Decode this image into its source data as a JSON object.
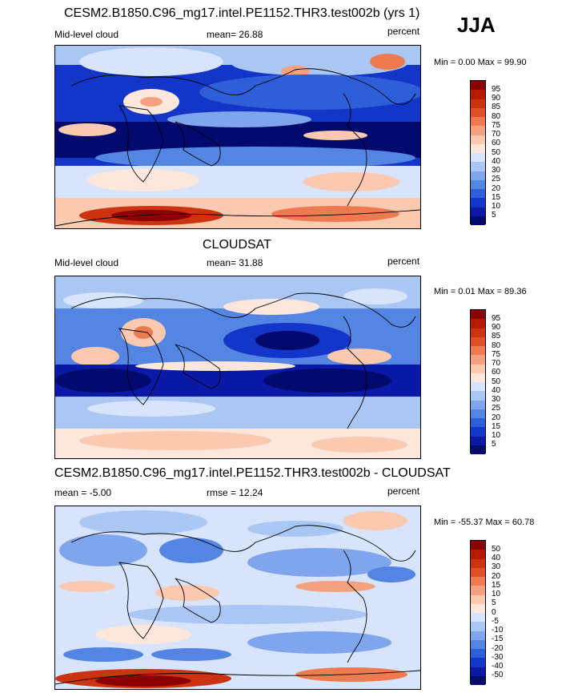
{
  "season": "JJA",
  "panels": [
    {
      "title": "CESM2.B1850.C96_mg17.intel.PE1152.THR3.test002b (yrs 1)",
      "left_label": "Mid-level cloud",
      "center_label": "mean=  26.88",
      "right_label": "percent",
      "minmax": "Min =   0.00 Max =  99.90",
      "colorbar_ticks": [
        "95",
        "90",
        "85",
        "80",
        "75",
        "70",
        "60",
        "50",
        "40",
        "30",
        "25",
        "20",
        "15",
        "10",
        "5"
      ],
      "colorbar_colors": [
        "#8b0000",
        "#b31a00",
        "#cc3311",
        "#e0502a",
        "#ee7a50",
        "#f5a07e",
        "#fbc8b0",
        "#fde7dc",
        "#d8e4fb",
        "#aac6f3",
        "#7fa6ec",
        "#5585e3",
        "#2e5fd8",
        "#1436c8",
        "#0a1aa6",
        "#020a6e"
      ]
    },
    {
      "title": "CLOUDSAT",
      "left_label": "Mid-level cloud",
      "center_label": "mean=  31.88",
      "right_label": "percent",
      "minmax": "Min =   0.01 Max =  89.36",
      "colorbar_ticks": [
        "95",
        "90",
        "85",
        "80",
        "75",
        "70",
        "60",
        "50",
        "40",
        "30",
        "25",
        "20",
        "15",
        "10",
        "5"
      ],
      "colorbar_colors": [
        "#8b0000",
        "#b31a00",
        "#cc3311",
        "#e0502a",
        "#ee7a50",
        "#f5a07e",
        "#fbc8b0",
        "#fde7dc",
        "#d8e4fb",
        "#aac6f3",
        "#7fa6ec",
        "#5585e3",
        "#2e5fd8",
        "#1436c8",
        "#0a1aa6",
        "#020a6e"
      ]
    },
    {
      "title": "CESM2.B1850.C96_mg17.intel.PE1152.THR3.test002b - CLOUDSAT",
      "left_label": "mean = -5.00",
      "center_label": "rmse =  12.24",
      "right_label": "percent",
      "minmax": "Min = -55.37 Max =  60.78",
      "colorbar_ticks": [
        "50",
        "40",
        "30",
        "20",
        "15",
        "10",
        "5",
        "0",
        "-5",
        "-10",
        "-15",
        "-20",
        "-30",
        "-40",
        "-50"
      ],
      "colorbar_colors": [
        "#8b0000",
        "#b31a00",
        "#cc3311",
        "#e0502a",
        "#ee7a50",
        "#f5a07e",
        "#fbc8b0",
        "#fde7dc",
        "#d8e4fb",
        "#aac6f3",
        "#7fa6ec",
        "#5585e3",
        "#2e5fd8",
        "#1436c8",
        "#0a1aa6",
        "#020a6e"
      ]
    }
  ]
}
